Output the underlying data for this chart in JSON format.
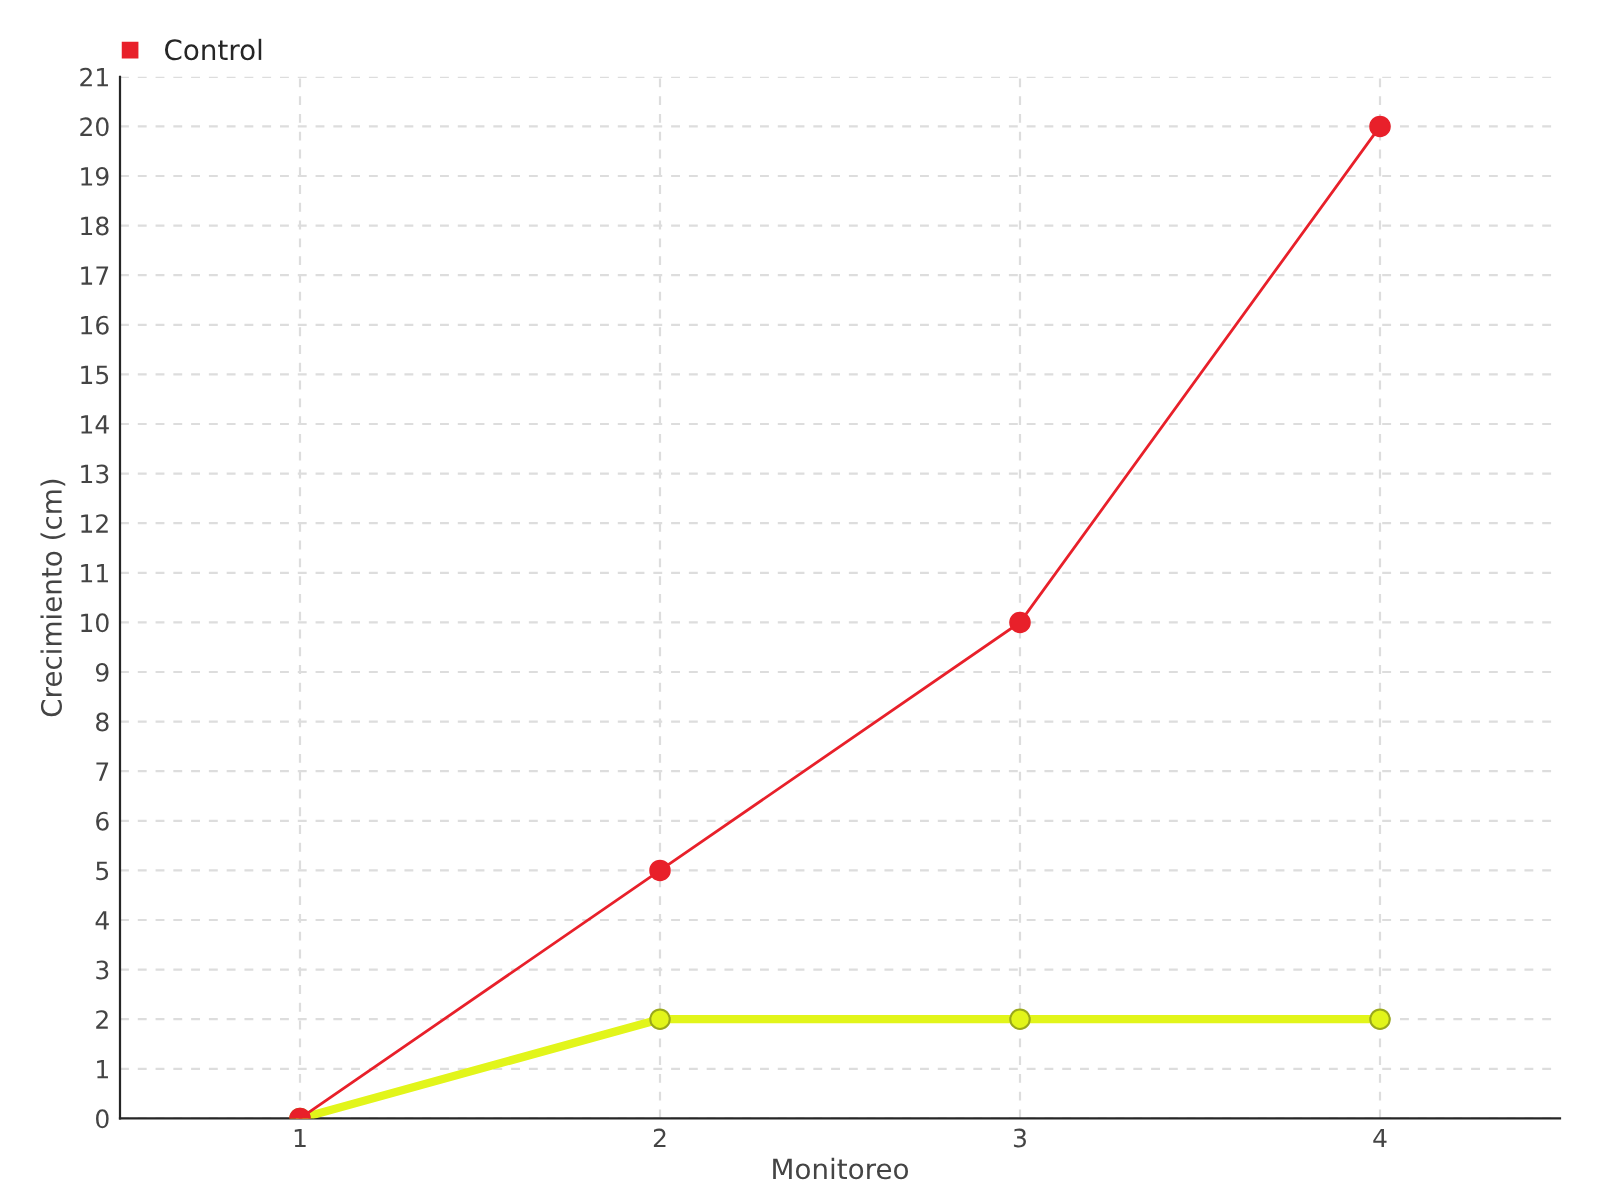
{
  "chart_data": {
    "type": "line",
    "xlabel": "Monitoreo",
    "ylabel": "Crecimiento (cm)",
    "categories": [
      "1",
      "2",
      "3",
      "4"
    ],
    "series": [
      {
        "color": "#e2f51a",
        "values": [
          0,
          2,
          2,
          2
        ]
      },
      {
        "name": "Control",
        "color": "#e8202a",
        "values": [
          0,
          5,
          10,
          20
        ]
      }
    ],
    "ylim": [
      0,
      21
    ],
    "yticks": [
      0,
      1,
      2,
      3,
      4,
      5,
      6,
      7,
      8,
      9,
      10,
      11,
      12,
      13,
      14,
      15,
      16,
      17,
      18,
      19,
      20,
      21
    ],
    "grid": true,
    "legend": "top left",
    "marker": "circle",
    "line_style": "solid"
  }
}
